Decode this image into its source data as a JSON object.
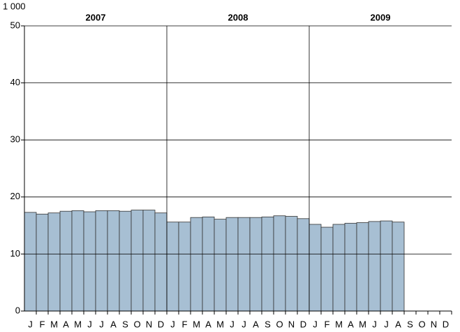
{
  "chart_data": {
    "type": "bar",
    "y_unit": "1 000",
    "groups": [
      "2007",
      "2008",
      "2009"
    ],
    "categories": [
      "J",
      "F",
      "M",
      "A",
      "M",
      "J",
      "J",
      "A",
      "S",
      "O",
      "N",
      "D",
      "J",
      "F",
      "M",
      "A",
      "M",
      "J",
      "J",
      "A",
      "S",
      "O",
      "N",
      "D",
      "J",
      "F",
      "M",
      "A",
      "M",
      "J",
      "J",
      "A",
      "S",
      "O",
      "N",
      "D"
    ],
    "values": [
      17.3,
      17.0,
      17.2,
      17.5,
      17.6,
      17.4,
      17.6,
      17.6,
      17.5,
      17.7,
      17.7,
      17.2,
      15.6,
      15.6,
      16.4,
      16.5,
      16.1,
      16.4,
      16.4,
      16.4,
      16.5,
      16.7,
      16.6,
      16.2,
      15.2,
      14.7,
      15.2,
      15.4,
      15.5,
      15.7,
      15.8,
      15.6,
      null,
      null,
      null,
      null
    ],
    "color": "#a7bfd3",
    "ylim": [
      0,
      50
    ],
    "yticks": [
      0,
      10,
      20,
      30,
      40,
      50
    ],
    "grid": true
  }
}
